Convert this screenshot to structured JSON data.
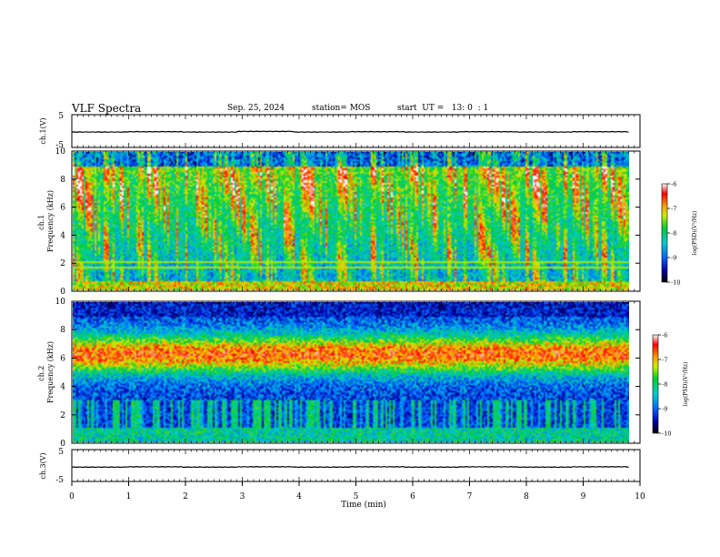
{
  "header": {
    "title": "VLF Spectra",
    "date": "Sep. 25, 2024",
    "station": "station= MOS",
    "start": "start  UT =   13: 0  : 1"
  },
  "chart_data": [
    {
      "type": "line",
      "panel": "ch1-waveform",
      "ylabel": "ch.1(V)",
      "ylim": [
        -5,
        5
      ],
      "y_ticks": [
        "5",
        "-5"
      ],
      "xlim": [
        0,
        10
      ],
      "series": [
        {
          "values": [
            -0.3,
            -0.2,
            -0.3,
            -0.1,
            -0.3,
            -0.2,
            -0.3,
            -0.2,
            -0.3,
            -0.2,
            -0.3
          ]
        }
      ]
    },
    {
      "type": "heatmap",
      "panel": "ch1-spectrogram",
      "ylabel": "ch.1\nFrequency (kHz)",
      "ylim": [
        0,
        10
      ],
      "y_ticks": [
        "0",
        "2",
        "4",
        "6",
        "8",
        "10"
      ],
      "xlim": [
        0,
        9.8
      ],
      "colorbar": {
        "label": "log(PSD)(V²/Hz)",
        "range": [
          -10,
          -6
        ],
        "ticks": [
          "-6",
          "-7",
          "-8",
          "-9",
          "-10"
        ]
      }
    },
    {
      "type": "heatmap",
      "panel": "ch2-spectrogram",
      "ylabel": "ch.2\nFrequency (kHz)",
      "ylim": [
        0,
        10
      ],
      "y_ticks": [
        "0",
        "2",
        "4",
        "6",
        "8",
        "10"
      ],
      "xlim": [
        0,
        9.8
      ],
      "colorbar": {
        "label": "log(PSD)(V²/Hz)",
        "range": [
          -10,
          -6
        ],
        "ticks": [
          "-6",
          "-7",
          "-8",
          "-9",
          "-10"
        ]
      }
    },
    {
      "type": "line",
      "panel": "ch3-waveform",
      "ylabel": "ch.3(V)",
      "ylim": [
        -5,
        5
      ],
      "y_ticks": [
        "5",
        "-5"
      ],
      "xlim": [
        0,
        10
      ],
      "series": [
        {
          "values": [
            -0.5,
            -0.4,
            -0.5,
            -0.4,
            -0.5,
            -0.4,
            -0.5,
            -0.4,
            -0.5,
            -0.4,
            -0.5
          ]
        }
      ]
    }
  ],
  "x_axis": {
    "label": "Time (min)",
    "range": [
      0,
      10
    ],
    "ticks": [
      "0",
      "1",
      "2",
      "3",
      "4",
      "5",
      "6",
      "7",
      "8",
      "9",
      "10"
    ]
  }
}
